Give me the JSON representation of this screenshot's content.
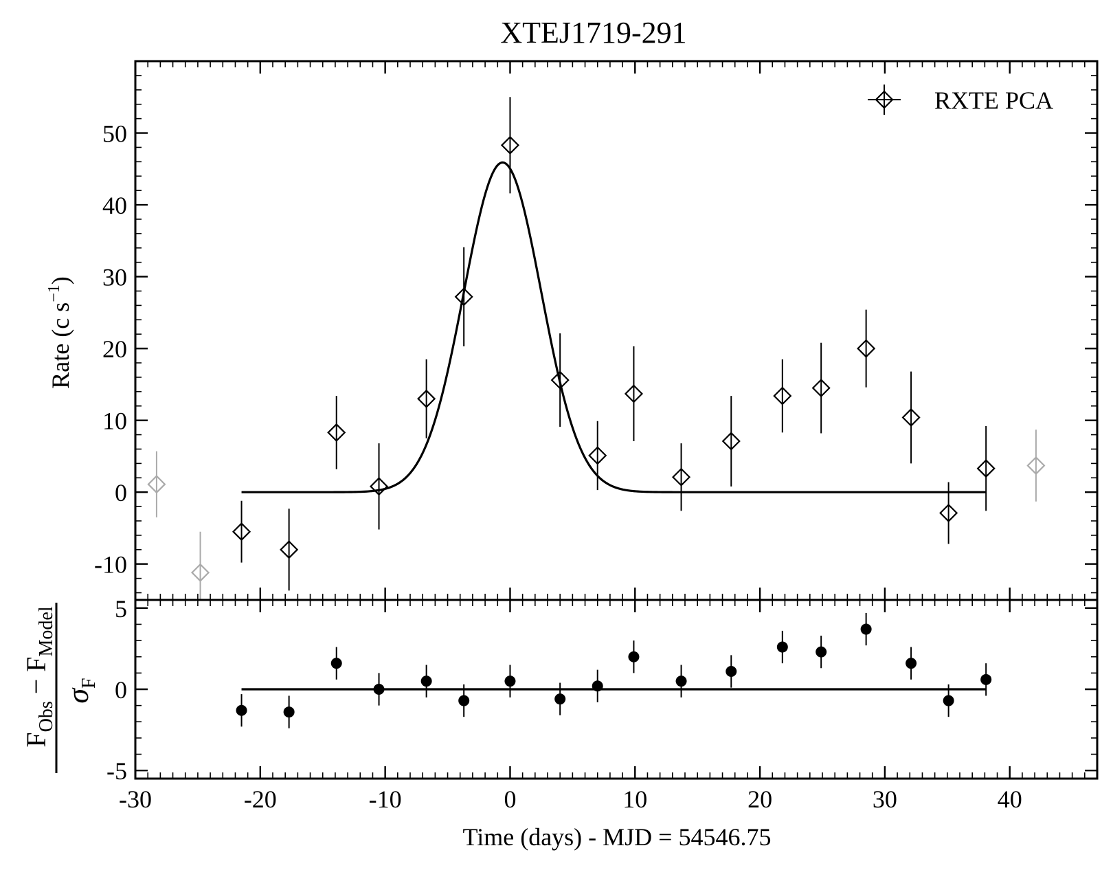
{
  "chart_data": [
    {
      "type": "scatter",
      "panel": "top",
      "title": "XTEJ1719-291",
      "ylabel_main": "Rate (c s",
      "ylabel_sup": "−1",
      "ylabel_close": ")",
      "xlim": [
        -30,
        47
      ],
      "ylim": [
        -15,
        60
      ],
      "yticks": [
        -10,
        0,
        10,
        20,
        30,
        40,
        50
      ],
      "ytick_labels": [
        "-10",
        "0",
        "10",
        "20",
        "30",
        "40",
        "50"
      ],
      "legend": {
        "label": "RXTE PCA",
        "placement": "top-right"
      },
      "series": [
        {
          "name": "RXTE PCA",
          "x": [
            -21.5,
            -17.7,
            -13.9,
            -10.5,
            -6.7,
            -3.7,
            0,
            4,
            7,
            9.9,
            13.7,
            17.7,
            21.8,
            24.9,
            28.5,
            32.1,
            35.1,
            38.1
          ],
          "y": [
            -5.5,
            -8,
            8.3,
            0.8,
            13,
            27.2,
            48.3,
            15.6,
            5.1,
            13.7,
            2.1,
            7.1,
            13.4,
            14.5,
            20,
            10.4,
            -2.9,
            3.3
          ],
          "yerr": [
            4.3,
            5.7,
            5.1,
            6,
            5.5,
            6.9,
            6.7,
            6.5,
            4.8,
            6.6,
            4.7,
            6.3,
            5.1,
            6.3,
            5.4,
            6.4,
            4.3,
            5.9
          ]
        },
        {
          "name": "",
          "excluded": true,
          "x": [
            -28.3,
            -24.8,
            42.1
          ],
          "y": [
            1.1,
            -11.2,
            3.7
          ],
          "yerr": [
            4.6,
            5.7,
            5
          ]
        }
      ],
      "model": {
        "amplitude": 45.9,
        "center": -0.6,
        "sigma": 3.1,
        "xrange": [
          -21.5,
          38.1
        ]
      }
    },
    {
      "type": "scatter",
      "panel": "bottom",
      "xlabel": "Time (days) - MJD = 54546.75",
      "ylabel": "(F_Obs − F_Model) / σ_F",
      "xlim": [
        -30,
        47
      ],
      "ylim": [
        -5.5,
        5.5
      ],
      "xticks": [
        -30,
        -20,
        -10,
        0,
        10,
        20,
        30,
        40
      ],
      "xtick_labels": [
        "-30",
        "-20",
        "-10",
        "0",
        "10",
        "20",
        "30",
        "40"
      ],
      "yticks": [
        -5,
        0,
        5
      ],
      "ytick_labels": [
        "-5",
        "0",
        "5"
      ],
      "x": [
        -21.5,
        -17.7,
        -13.9,
        -10.5,
        -6.7,
        -3.7,
        0,
        4,
        7,
        9.9,
        13.7,
        17.7,
        21.8,
        24.9,
        28.5,
        32.1,
        35.1,
        38.1
      ],
      "y": [
        -1.3,
        -1.4,
        1.6,
        0,
        0.5,
        -0.7,
        0.5,
        -0.6,
        0.2,
        2,
        0.5,
        1.1,
        2.6,
        2.3,
        3.7,
        1.6,
        -0.7,
        0.6
      ],
      "yerr": [
        1,
        1,
        1,
        1,
        1,
        1,
        1,
        1,
        1,
        1,
        1,
        1,
        1,
        1,
        1,
        1,
        1,
        1
      ]
    }
  ],
  "resid_label": {
    "num_main": "F",
    "num_sub1": "Obs",
    "num_op": " − F",
    "num_sub2": "Model",
    "den_main": "σ",
    "den_sub": "F"
  },
  "colors": {
    "main": "#000000",
    "excluded": "#aaaaaa"
  }
}
